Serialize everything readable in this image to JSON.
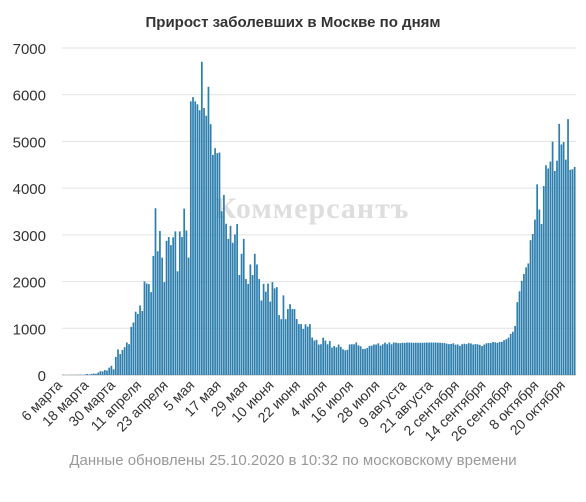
{
  "chart_data": {
    "type": "bar",
    "title": "Прирост заболевших в Москве по дням",
    "xlabel": "",
    "ylabel": "",
    "x": {
      "first_date": "2020-03-06",
      "last_date": "2020-10-25",
      "tick_labels": [
        "6 марта",
        "18 марта",
        "30 марта",
        "11 апреля",
        "23 апреля",
        "5 мая",
        "17 мая",
        "29 мая",
        "10 июня",
        "22 июня",
        "4 июля",
        "16 июля",
        "28 июля",
        "9 августа",
        "21 августа",
        "2 сентября",
        "14 сентября",
        "26 сентября",
        "8 октября",
        "20 октября"
      ]
    },
    "yticks": [
      0,
      1000,
      2000,
      3000,
      4000,
      5000,
      6000,
      7000
    ],
    "ylim": [
      0,
      7000
    ],
    "grid": "horizontal",
    "legend": "none",
    "bar_color": "#2E7FAE",
    "values": [
      6,
      0,
      0,
      1,
      4,
      2,
      2,
      5,
      5,
      4,
      8,
      21,
      12,
      21,
      32,
      26,
      52,
      81,
      77,
      106,
      96,
      157,
      197,
      122,
      387,
      546,
      448,
      536,
      595,
      697,
      660,
      1030,
      1124,
      1355,
      1306,
      1489,
      1370,
      2004,
      1959,
      1946,
      1774,
      2548,
      3570,
      2649,
      3083,
      2512,
      1989,
      2871,
      2952,
      2779,
      2947,
      3075,
      2220,
      3075,
      2954,
      3561,
      3093,
      2512,
      5858,
      5948,
      5858,
      5795,
      5667,
      6703,
      5714,
      5551,
      6169,
      5369,
      4712,
      4855,
      4748,
      4763,
      3505,
      3855,
      3238,
      2913,
      3190,
      2830,
      3010,
      3231,
      2140,
      2595,
      2913,
      2054,
      1951,
      2367,
      2140,
      2595,
      2367,
      2054,
      1595,
      1951,
      1784,
      1957,
      1572,
      1989,
      1855,
      1881,
      1282,
      1195,
      1704,
      1195,
      1411,
      1515,
      1411,
      1411,
      1198,
      1090,
      1090,
      986,
      1086,
      1035,
      1090,
      802,
      738,
      753,
      652,
      660,
      798,
      738,
      658,
      726,
      587,
      620,
      592,
      652,
      601,
      550,
      529,
      539,
      654,
      658,
      658,
      697,
      634,
      614,
      556,
      560,
      580,
      624,
      629,
      654,
      652,
      678,
      630,
      658,
      692,
      660,
      697,
      658,
      695,
      693,
      682,
      682,
      690,
      687,
      695,
      693,
      694,
      688,
      690,
      690,
      689,
      690,
      691,
      695,
      693,
      695,
      694,
      696,
      690,
      691,
      684,
      684,
      671,
      661,
      664,
      679,
      650,
      655,
      624,
      659,
      670,
      660,
      682,
      675,
      653,
      661,
      658,
      645,
      621,
      652,
      678,
      684,
      683,
      707,
      700,
      688,
      707,
      710,
      745,
      766,
      800,
      878,
      926,
      1050,
      1560,
      1792,
      2016,
      2164,
      2304,
      2388,
      2887,
      3018,
      3327,
      4082,
      3541,
      3234,
      4045,
      4490,
      4421,
      4570,
      4995,
      4368,
      4588,
      5376,
      4935,
      4988,
      4610,
      5478,
      4393,
      4404,
      4455
    ]
  },
  "watermark": {
    "text": "Коммерсантъ"
  },
  "footnote": "Данные обновлены 25.10.2020 в 10:32 по московскому времени"
}
